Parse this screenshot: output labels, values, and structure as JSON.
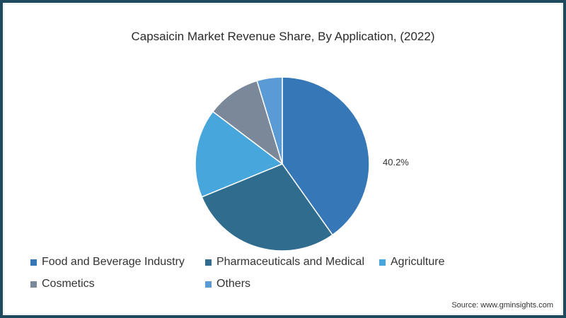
{
  "chart_data": {
    "type": "pie",
    "title": "Capsaicin  Market Revenue Share, By Application, (2022)",
    "categories": [
      "Food and Beverage Industry",
      "Pharmaceuticals and Medical",
      "Agriculture",
      "Cosmetics",
      "Others"
    ],
    "values": [
      40.2,
      28.6,
      16.5,
      10.0,
      4.7
    ],
    "colors": [
      "#3577b7",
      "#2f6c8d",
      "#47a7dd",
      "#7a8899",
      "#5b9bd5"
    ],
    "data_labels": [
      {
        "category": "Food and Beverage Industry",
        "label": "40.2%"
      }
    ],
    "legend_position": "bottom",
    "start_angle_deg": 0,
    "direction": "clockwise"
  },
  "title": "Capsaicin  Market Revenue Share, By Application, (2022)",
  "label": "40.2%",
  "legend": [
    {
      "label": "Food and Beverage Industry",
      "color": "#3577b7"
    },
    {
      "label": "Pharmaceuticals and Medical",
      "color": "#2f6c8d"
    },
    {
      "label": "Agriculture",
      "color": "#47a7dd"
    },
    {
      "label": "Cosmetics",
      "color": "#7a8899"
    },
    {
      "label": "Others",
      "color": "#5b9bd5"
    }
  ],
  "source": "Source: www.gminsights.com"
}
